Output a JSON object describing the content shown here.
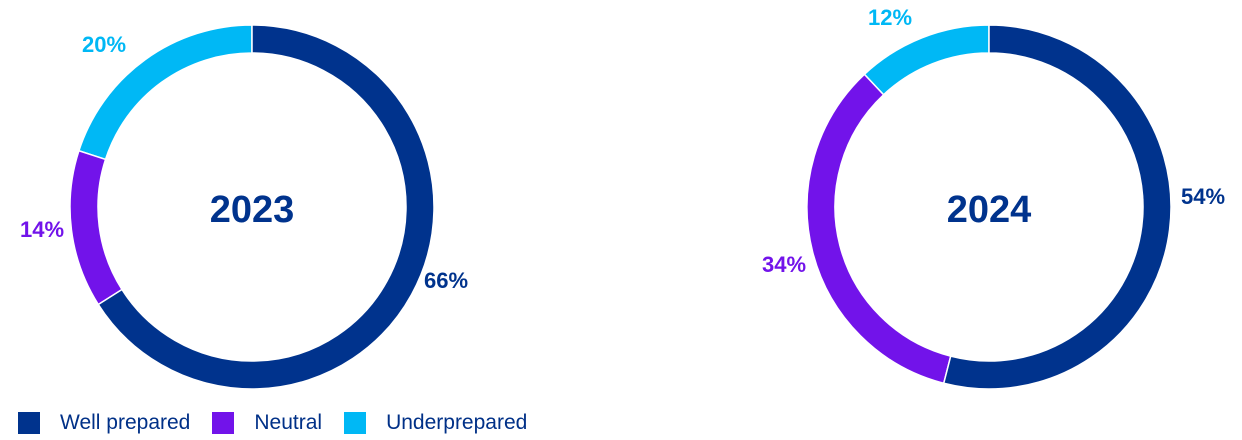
{
  "chart_data": [
    {
      "type": "pie",
      "center_label": "2023",
      "categories": [
        "Well prepared",
        "Neutral",
        "Underprepared"
      ],
      "values": [
        66,
        14,
        20
      ],
      "value_labels": [
        "66%",
        "14%",
        "20%"
      ]
    },
    {
      "type": "pie",
      "center_label": "2024",
      "categories": [
        "Well prepared",
        "Neutral",
        "Underprepared"
      ],
      "values": [
        54,
        34,
        12
      ],
      "value_labels": [
        "54%",
        "34%",
        "12%"
      ]
    }
  ],
  "legend": {
    "placement": "bottom-left",
    "items": [
      {
        "label": "Well prepared",
        "color": "#00338D"
      },
      {
        "label": "Neutral",
        "color": "#7213EA"
      },
      {
        "label": "Underprepared",
        "color": "#00B8F5"
      }
    ]
  }
}
